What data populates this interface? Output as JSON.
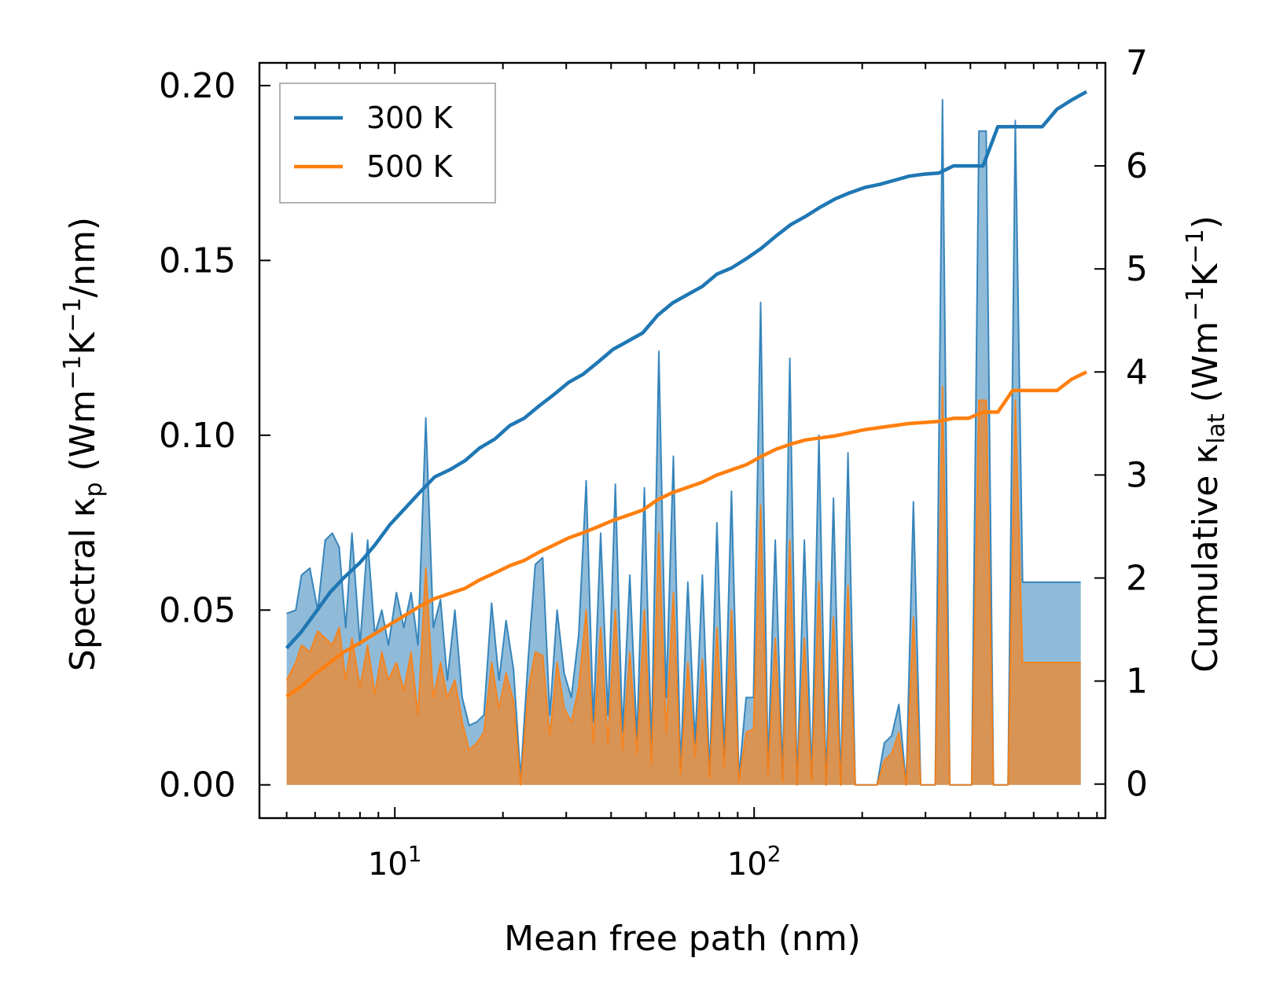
{
  "chart_data": {
    "type": "line",
    "xscale": "log",
    "xlim": [
      4.2,
      950
    ],
    "xlabel": "Mean free path (nm)",
    "x_ticks": [
      {
        "value": 10,
        "base": "10",
        "exp": "1"
      },
      {
        "value": 100,
        "base": "10",
        "exp": "2"
      }
    ],
    "left_axis": {
      "label_prefix": "Spectral κ",
      "label_sub": "p",
      "label_units": " (Wm",
      "label_sup1": "−1",
      "label_units2": "K",
      "label_sup2": "−1",
      "label_units3": "/nm)",
      "ylim": [
        -0.0095,
        0.2065
      ],
      "ticks": [
        0.0,
        0.05,
        0.1,
        0.15,
        0.2
      ],
      "tick_labels": [
        "0.00",
        "0.05",
        "0.10",
        "0.15",
        "0.20"
      ]
    },
    "right_axis": {
      "label_prefix": "Cumulative κ",
      "label_sub": "lat",
      "label_units": " (Wm",
      "label_sup1": "−1",
      "label_units2": "K",
      "label_sup2": "−1",
      "label_units3": ")",
      "ylim": [
        -0.33,
        7.0
      ],
      "ticks": [
        0,
        1,
        2,
        3,
        4,
        5,
        6,
        7
      ],
      "tick_labels": [
        "0",
        "1",
        "2",
        "3",
        "4",
        "5",
        "6",
        "7"
      ]
    },
    "legend": {
      "position": "top-left",
      "entries": [
        "300 K",
        "500 K"
      ]
    },
    "colors": {
      "300 K": "#1f77b4",
      "500 K": "#ff7f0e"
    },
    "series": [
      {
        "name": "300 K",
        "spectral": {
          "x": [
            5.0,
            5.3,
            5.5,
            5.8,
            6.1,
            6.4,
            6.7,
            7.0,
            7.3,
            7.6,
            8.0,
            8.4,
            8.8,
            9.2,
            9.6,
            10.1,
            10.6,
            11.1,
            11.6,
            12.2,
            12.8,
            13.4,
            14.0,
            14.7,
            15.4,
            16.1,
            16.9,
            17.7,
            18.6,
            19.5,
            20.4,
            21.4,
            22.4,
            23.5,
            24.6,
            25.8,
            27.0,
            28.3,
            29.6,
            31.0,
            32.5,
            34.1,
            35.7,
            37.4,
            39.2,
            41.1,
            43.0,
            45.1,
            47.2,
            49.5,
            51.8,
            54.3,
            56.9,
            59.6,
            62.4,
            65.4,
            68.5,
            71.8,
            75.2,
            78.8,
            82.6,
            86.5,
            90.7,
            95.0,
            99.6,
            104.3,
            109.3,
            114.5,
            120.0,
            125.7,
            131.7,
            138.0,
            144.6,
            151.5,
            158.7,
            166.3,
            174.2,
            182.5,
            191.2,
            200.3,
            209.9,
            219.9,
            230.4,
            241.4,
            252.9,
            265.0,
            277.6,
            290.9,
            304.8,
            319.3,
            334.5,
            350.5,
            367.3,
            384.8,
            403.2,
            422.4,
            442.6,
            463.7,
            485.9,
            509.1,
            533.4,
            558.9,
            585.5,
            613.5,
            642.8,
            673.5,
            705.6,
            739.3,
            774.6,
            811.6
          ],
          "y": [
            0.049,
            0.05,
            0.06,
            0.062,
            0.05,
            0.07,
            0.072,
            0.068,
            0.045,
            0.072,
            0.04,
            0.07,
            0.043,
            0.05,
            0.04,
            0.055,
            0.045,
            0.055,
            0.04,
            0.105,
            0.045,
            0.053,
            0.03,
            0.05,
            0.025,
            0.017,
            0.018,
            0.02,
            0.052,
            0.03,
            0.047,
            0.033,
            0.002,
            0.036,
            0.063,
            0.065,
            0.02,
            0.05,
            0.032,
            0.025,
            0.043,
            0.087,
            0.018,
            0.072,
            0.02,
            0.086,
            0.015,
            0.06,
            0.013,
            0.085,
            0.01,
            0.124,
            0.025,
            0.094,
            0.005,
            0.058,
            0.012,
            0.06,
            0.003,
            0.075,
            0.008,
            0.084,
            0.002,
            0.025,
            0.025,
            0.138,
            0.005,
            0.07,
            0.002,
            0.122,
            0.0,
            0.07,
            0.002,
            0.1,
            0.0,
            0.082,
            0.0,
            0.095,
            0.0,
            0.0,
            0.0,
            0.0,
            0.012,
            0.014,
            0.023,
            0.0,
            0.081,
            0.0,
            0.0,
            0.0,
            0.196,
            0.0,
            0.0,
            0.0,
            0.0,
            0.187,
            0.187,
            0.0,
            0.0,
            0.0,
            0.19,
            0.058,
            0.058,
            0.058,
            0.058,
            0.058,
            0.058,
            0.058,
            0.058,
            0.058
          ]
        },
        "cumulative": {
          "x": [
            5.0,
            5.5,
            6.0,
            6.6,
            7.2,
            8.0,
            8.8,
            9.7,
            10.7,
            11.8,
            12.9,
            14.2,
            15.7,
            17.2,
            19.0,
            20.9,
            22.9,
            25.2,
            27.7,
            30.5,
            33.5,
            36.9,
            40.5,
            44.6,
            49.0,
            53.9,
            59.3,
            65.2,
            71.7,
            78.8,
            86.6,
            95.2,
            104.7,
            115.1,
            126.5,
            139.1,
            152.9,
            168.1,
            184.8,
            203.2,
            223.4,
            245.6,
            270.0,
            296.8,
            326.3,
            358.8,
            394.5,
            433.7,
            476.8,
            524.2,
            576.3,
            633.6,
            696.6,
            765.8,
            841.9
          ],
          "y": [
            1.32,
            1.48,
            1.66,
            1.86,
            2.0,
            2.15,
            2.32,
            2.52,
            2.68,
            2.84,
            2.98,
            3.05,
            3.14,
            3.26,
            3.35,
            3.48,
            3.55,
            3.67,
            3.78,
            3.9,
            3.98,
            4.1,
            4.22,
            4.3,
            4.38,
            4.55,
            4.67,
            4.75,
            4.83,
            4.95,
            5.01,
            5.1,
            5.2,
            5.32,
            5.43,
            5.51,
            5.6,
            5.68,
            5.74,
            5.79,
            5.82,
            5.86,
            5.9,
            5.92,
            5.93,
            6.0,
            6.0,
            6.0,
            6.38,
            6.38,
            6.38,
            6.38,
            6.55,
            6.64,
            6.72
          ]
        }
      },
      {
        "name": "500 K",
        "spectral": {
          "x": [
            5.0,
            5.3,
            5.5,
            5.8,
            6.1,
            6.4,
            6.7,
            7.0,
            7.3,
            7.6,
            8.0,
            8.4,
            8.8,
            9.2,
            9.6,
            10.1,
            10.6,
            11.1,
            11.6,
            12.2,
            12.8,
            13.4,
            14.0,
            14.7,
            15.4,
            16.1,
            16.9,
            17.7,
            18.6,
            19.5,
            20.4,
            21.4,
            22.4,
            23.5,
            24.6,
            25.8,
            27.0,
            28.3,
            29.6,
            31.0,
            32.5,
            34.1,
            35.7,
            37.4,
            39.2,
            41.1,
            43.0,
            45.1,
            47.2,
            49.5,
            51.8,
            54.3,
            56.9,
            59.6,
            62.4,
            65.4,
            68.5,
            71.8,
            75.2,
            78.8,
            82.6,
            86.5,
            90.7,
            95.0,
            99.6,
            104.3,
            109.3,
            114.5,
            120.0,
            125.7,
            131.7,
            138.0,
            144.6,
            151.5,
            158.7,
            166.3,
            174.2,
            182.5,
            191.2,
            200.3,
            209.9,
            219.9,
            230.4,
            241.4,
            252.9,
            265.0,
            277.6,
            290.9,
            304.8,
            319.3,
            334.5,
            350.5,
            367.3,
            384.8,
            403.2,
            422.4,
            442.6,
            463.7,
            485.9,
            509.1,
            533.4,
            558.9,
            585.5,
            613.5,
            642.8,
            673.5,
            705.6,
            739.3,
            774.6,
            811.6
          ],
          "y": [
            0.03,
            0.035,
            0.04,
            0.038,
            0.044,
            0.042,
            0.04,
            0.045,
            0.03,
            0.042,
            0.028,
            0.04,
            0.026,
            0.038,
            0.03,
            0.035,
            0.027,
            0.038,
            0.02,
            0.062,
            0.025,
            0.035,
            0.025,
            0.03,
            0.018,
            0.01,
            0.012,
            0.015,
            0.035,
            0.022,
            0.032,
            0.024,
            0.0,
            0.027,
            0.038,
            0.037,
            0.014,
            0.035,
            0.022,
            0.018,
            0.028,
            0.05,
            0.012,
            0.045,
            0.012,
            0.05,
            0.01,
            0.038,
            0.009,
            0.05,
            0.006,
            0.072,
            0.015,
            0.055,
            0.003,
            0.035,
            0.008,
            0.036,
            0.002,
            0.045,
            0.005,
            0.05,
            0.001,
            0.015,
            0.016,
            0.08,
            0.003,
            0.042,
            0.001,
            0.07,
            0.0,
            0.042,
            0.001,
            0.058,
            0.0,
            0.048,
            0.0,
            0.057,
            0.0,
            0.0,
            0.0,
            0.0,
            0.007,
            0.009,
            0.015,
            0.0,
            0.048,
            0.0,
            0.0,
            0.0,
            0.114,
            0.0,
            0.0,
            0.0,
            0.0,
            0.11,
            0.11,
            0.0,
            0.0,
            0.0,
            0.11,
            0.035,
            0.035,
            0.035,
            0.035,
            0.035,
            0.035,
            0.035,
            0.035,
            0.035
          ]
        },
        "cumulative": {
          "x": [
            5.0,
            5.5,
            6.0,
            6.6,
            7.2,
            8.0,
            8.8,
            9.7,
            10.7,
            11.8,
            12.9,
            14.2,
            15.7,
            17.2,
            19.0,
            20.9,
            22.9,
            25.2,
            27.7,
            30.5,
            33.5,
            36.9,
            40.5,
            44.6,
            49.0,
            53.9,
            59.3,
            65.2,
            71.7,
            78.8,
            86.6,
            95.2,
            104.7,
            115.1,
            126.5,
            139.1,
            152.9,
            168.1,
            184.8,
            203.2,
            223.4,
            245.6,
            270.0,
            296.8,
            326.3,
            358.8,
            394.5,
            433.7,
            476.8,
            524.2,
            576.3,
            633.6,
            696.6,
            765.8,
            841.9
          ],
          "y": [
            0.85,
            0.95,
            1.07,
            1.18,
            1.28,
            1.37,
            1.46,
            1.55,
            1.64,
            1.73,
            1.8,
            1.85,
            1.9,
            1.98,
            2.05,
            2.12,
            2.17,
            2.25,
            2.32,
            2.39,
            2.44,
            2.5,
            2.56,
            2.61,
            2.66,
            2.76,
            2.83,
            2.88,
            2.93,
            3.0,
            3.05,
            3.1,
            3.18,
            3.25,
            3.3,
            3.34,
            3.36,
            3.38,
            3.41,
            3.44,
            3.46,
            3.48,
            3.5,
            3.51,
            3.52,
            3.55,
            3.55,
            3.61,
            3.61,
            3.82,
            3.82,
            3.82,
            3.82,
            3.93,
            4.0
          ]
        }
      }
    ]
  }
}
